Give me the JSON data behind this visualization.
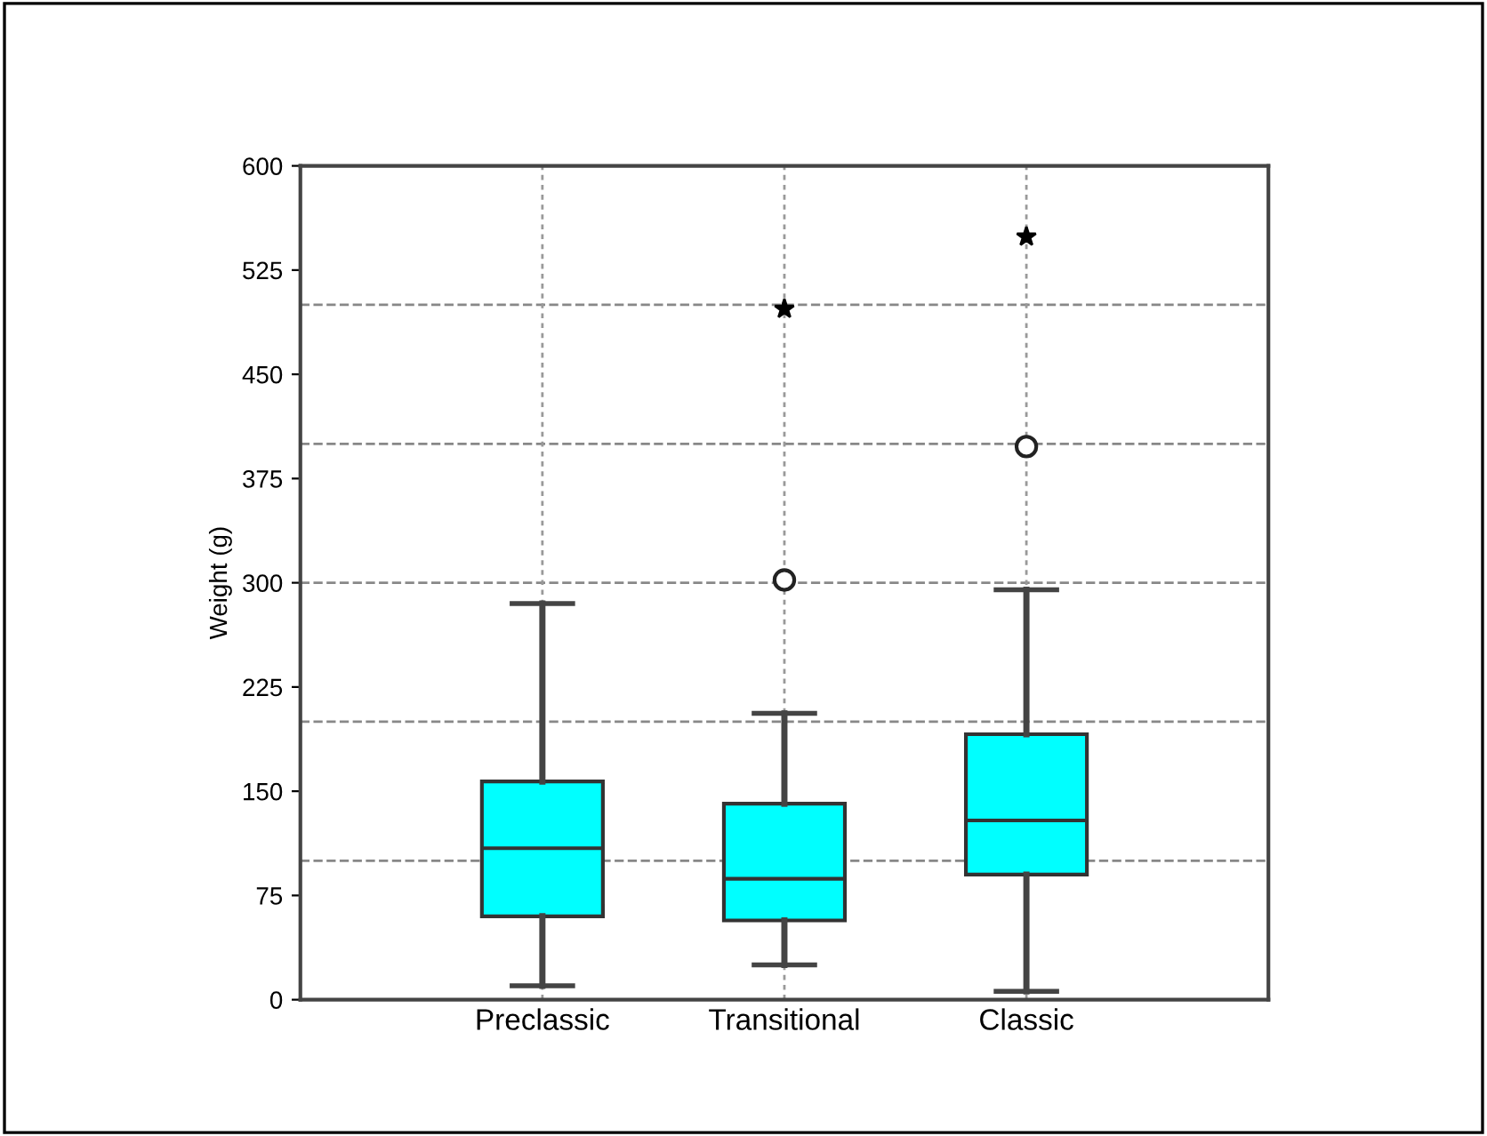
{
  "chart_data": {
    "type": "box",
    "ylabel": "Weight (g)",
    "categories": [
      "Preclassic",
      "Transitional",
      "Classic"
    ],
    "boxes": [
      {
        "low": 10,
        "q1": 60,
        "median": 109,
        "q3": 157,
        "high": 285
      },
      {
        "low": 25,
        "q1": 57,
        "median": 87,
        "q3": 141,
        "high": 206,
        "outliers": [
          302,
          497
        ]
      },
      {
        "low": 6,
        "q1": 90,
        "median": 129,
        "q3": 191,
        "high": 295,
        "outliers": [
          398,
          549
        ]
      }
    ],
    "color": "#00ffff",
    "ylim": [
      0,
      600
    ],
    "yticks": [
      0,
      75,
      150,
      225,
      300,
      375,
      450,
      525,
      600
    ],
    "grid": "x",
    "ref_lines": [
      {
        "axis": "y",
        "value": 100,
        "color": "#888888",
        "line_style": "dashed"
      },
      {
        "axis": "y",
        "value": 200,
        "color": "#888888",
        "line_style": "dashed"
      },
      {
        "axis": "y",
        "value": 300,
        "color": "#888888",
        "line_style": "dashed"
      },
      {
        "axis": "y",
        "value": 400,
        "color": "#888888",
        "line_style": "dashed"
      },
      {
        "axis": "y",
        "value": 500,
        "color": "#888888",
        "line_style": "dashed"
      }
    ]
  }
}
